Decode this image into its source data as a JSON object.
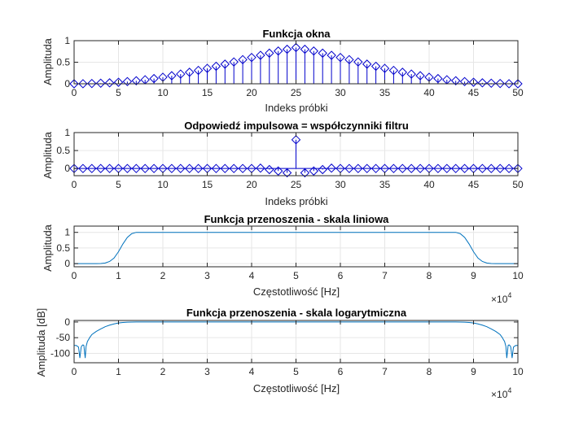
{
  "figure": {
    "background": "#ffffff",
    "axes_color": "#262626",
    "grid_color": "#e6e6e6",
    "series_color": "#0000cc",
    "line_color": "#0072bd"
  },
  "chart_data": [
    {
      "type": "stem",
      "title": "Funkcja okna",
      "xlabel": "Indeks próbki",
      "ylabel": "Amplituda",
      "xlim": [
        0,
        50
      ],
      "ylim": [
        0,
        1
      ],
      "xticks": [
        0,
        5,
        10,
        15,
        20,
        25,
        30,
        35,
        40,
        45,
        50
      ],
      "xtick_labels": [
        "0",
        "5",
        "10",
        "15",
        "20",
        "25",
        "30",
        "35",
        "40",
        "45",
        "50"
      ],
      "yticks": [
        0,
        0.5,
        1
      ],
      "ytick_labels": [
        "0",
        "0.5",
        "1"
      ],
      "grid": true,
      "marker": "diamond",
      "x": [
        0,
        1,
        2,
        3,
        4,
        5,
        6,
        7,
        8,
        9,
        10,
        11,
        12,
        13,
        14,
        15,
        16,
        17,
        18,
        19,
        20,
        21,
        22,
        23,
        24,
        25,
        26,
        27,
        28,
        29,
        30,
        31,
        32,
        33,
        34,
        35,
        36,
        37,
        38,
        39,
        40,
        41,
        42,
        43,
        44,
        45,
        46,
        47,
        48,
        49,
        50
      ],
      "values": [
        0.0,
        0.001,
        0.006,
        0.013,
        0.022,
        0.035,
        0.051,
        0.07,
        0.093,
        0.121,
        0.152,
        0.187,
        0.225,
        0.267,
        0.31,
        0.357,
        0.405,
        0.455,
        0.506,
        0.56,
        0.61,
        0.66,
        0.71,
        0.76,
        0.8,
        0.84,
        0.8,
        0.76,
        0.71,
        0.66,
        0.61,
        0.56,
        0.506,
        0.455,
        0.405,
        0.357,
        0.31,
        0.267,
        0.225,
        0.187,
        0.152,
        0.121,
        0.093,
        0.07,
        0.051,
        0.035,
        0.022,
        0.013,
        0.006,
        0.001,
        0.0
      ]
    },
    {
      "type": "stem",
      "title": "Odpowiedź impulsowa = współczynniki filtru",
      "xlabel": "Indeks próbki",
      "ylabel": "Amplituda",
      "xlim": [
        0,
        50
      ],
      "ylim": [
        -0.2,
        1
      ],
      "xticks": [
        0,
        5,
        10,
        15,
        20,
        25,
        30,
        35,
        40,
        45,
        50
      ],
      "xtick_labels": [
        "0",
        "5",
        "10",
        "15",
        "20",
        "25",
        "30",
        "35",
        "40",
        "45",
        "50"
      ],
      "yticks": [
        0,
        0.5,
        1
      ],
      "ytick_labels": [
        "0",
        "0.5",
        "1"
      ],
      "grid": true,
      "marker": "diamond",
      "x": [
        0,
        1,
        2,
        3,
        4,
        5,
        6,
        7,
        8,
        9,
        10,
        11,
        12,
        13,
        14,
        15,
        16,
        17,
        18,
        19,
        20,
        21,
        22,
        23,
        24,
        25,
        26,
        27,
        28,
        29,
        30,
        31,
        32,
        33,
        34,
        35,
        36,
        37,
        38,
        39,
        40,
        41,
        42,
        43,
        44,
        45,
        46,
        47,
        48,
        49,
        50
      ],
      "values": [
        0.0,
        0.0,
        0.0,
        0.0,
        0.0,
        0.0,
        0.0,
        0.0,
        0.0,
        0.0,
        0.0,
        0.0,
        0.0,
        0.0,
        0.0,
        0.0,
        0.0,
        0.0,
        0.0,
        0.0,
        0.0,
        0.01,
        -0.03,
        -0.07,
        -0.12,
        0.8,
        -0.12,
        -0.07,
        -0.03,
        0.01,
        0.0,
        0.0,
        0.0,
        0.0,
        0.0,
        0.0,
        0.0,
        0.0,
        0.0,
        0.0,
        0.0,
        0.0,
        0.0,
        0.0,
        0.0,
        0.0,
        0.0,
        0.0,
        0.0,
        0.0,
        0.0
      ]
    },
    {
      "type": "line",
      "title": "Funkcja przenoszenia - skala liniowa",
      "xlabel": "Częstotliwość [Hz]",
      "ylabel": "Amplituda",
      "xlim": [
        0,
        100000
      ],
      "ylim": [
        -0.1,
        1.2
      ],
      "xticks": [
        0,
        10000,
        20000,
        30000,
        40000,
        50000,
        60000,
        70000,
        80000,
        90000,
        100000
      ],
      "xtick_labels": [
        "0",
        "1",
        "2",
        "3",
        "4",
        "5",
        "6",
        "7",
        "8",
        "9",
        "10"
      ],
      "x_exponent": "10",
      "x_exponent_power": "4",
      "x_exponent_prefix": "×",
      "yticks": [
        0,
        0.5,
        1
      ],
      "ytick_labels": [
        "0",
        "0.5",
        "1"
      ],
      "grid": true,
      "x": [
        0,
        5000,
        6000,
        7000,
        8000,
        9000,
        10000,
        11000,
        12000,
        13000,
        14000,
        15000,
        50000,
        85000,
        86000,
        87000,
        88000,
        89000,
        90000,
        91000,
        92000,
        93000,
        94000,
        95000,
        100000
      ],
      "values": [
        0.0,
        0.0,
        0.005,
        0.02,
        0.07,
        0.18,
        0.38,
        0.63,
        0.84,
        0.96,
        1.0,
        1.0,
        1.0,
        1.0,
        1.0,
        0.96,
        0.84,
        0.63,
        0.38,
        0.18,
        0.07,
        0.02,
        0.005,
        0.0,
        0.0
      ]
    },
    {
      "type": "line",
      "title": "Funkcja przenoszenia - skala logarytmiczna",
      "xlabel": "Częstotliwość [Hz]",
      "ylabel": "Amplituda [dB]",
      "xlim": [
        0,
        100000
      ],
      "ylim": [
        -130,
        5
      ],
      "xticks": [
        0,
        10000,
        20000,
        30000,
        40000,
        50000,
        60000,
        70000,
        80000,
        90000,
        100000
      ],
      "xtick_labels": [
        "0",
        "1",
        "2",
        "3",
        "4",
        "5",
        "6",
        "7",
        "8",
        "9",
        "10"
      ],
      "x_exponent": "10",
      "x_exponent_power": "4",
      "x_exponent_prefix": "×",
      "yticks": [
        -100,
        -50,
        0
      ],
      "ytick_labels": [
        "-100",
        "-50",
        "0"
      ],
      "grid": true,
      "x": [
        0,
        500,
        1000,
        1300,
        1600,
        1800,
        2000,
        2200,
        2500,
        2700,
        3000,
        3300,
        3500,
        4000,
        5000,
        6000,
        7000,
        8000,
        9000,
        10000,
        11000,
        12000,
        13000,
        14000,
        50000,
        86000,
        87000,
        88000,
        89000,
        90000,
        91000,
        92000,
        93000,
        94000,
        95000,
        96000,
        96500,
        96700,
        97000,
        97300,
        97500,
        97800,
        98000,
        98200,
        98400,
        98700,
        99000,
        99500,
        100000
      ],
      "values": [
        -75,
        -75,
        -80,
        -115,
        -80,
        -75,
        -73,
        -75,
        -115,
        -78,
        -62,
        -55,
        -50,
        -40,
        -30,
        -22,
        -15,
        -10,
        -6,
        -3,
        -1.5,
        -0.6,
        -0.2,
        0,
        0,
        0,
        -0.2,
        -0.6,
        -1.5,
        -3,
        -6,
        -10,
        -15,
        -22,
        -30,
        -40,
        -50,
        -55,
        -62,
        -78,
        -115,
        -75,
        -73,
        -75,
        -80,
        -115,
        -80,
        -75,
        -75
      ]
    }
  ]
}
